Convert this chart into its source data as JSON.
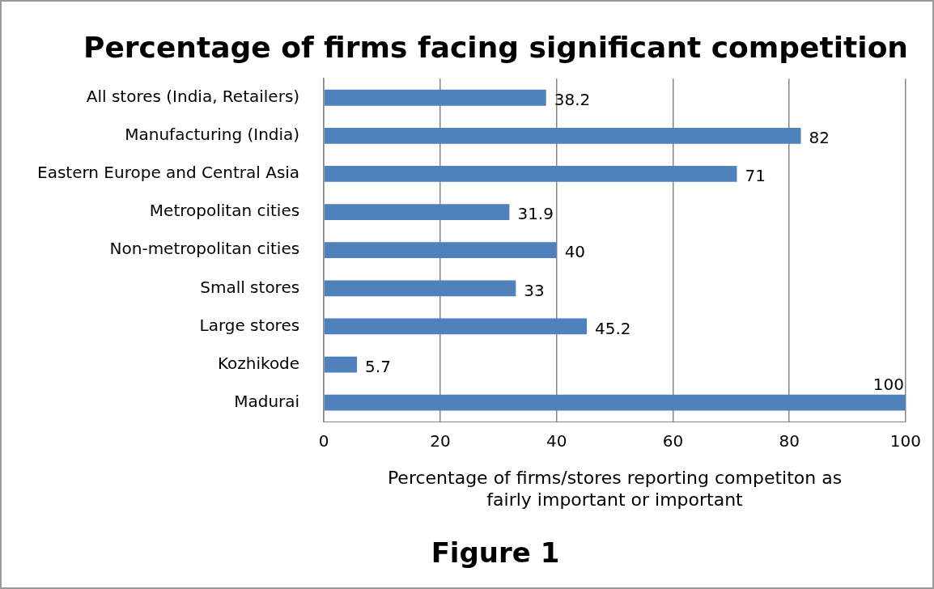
{
  "chart_data": {
    "type": "bar",
    "orientation": "horizontal",
    "title": "Percentage of firms facing significant competition",
    "categories": [
      "All stores (India, Retailers)",
      "Manufacturing (India)",
      "Eastern Europe and Central Asia",
      "Metropolitan cities",
      "Non-metropolitan cities",
      "Small stores",
      "Large stores",
      "Kozhikode",
      "Madurai"
    ],
    "values": [
      38.2,
      82,
      71,
      31.9,
      40,
      33,
      45.2,
      5.7,
      100
    ],
    "color": "#4f81bd",
    "xlim": [
      0,
      100
    ],
    "xticks": [
      0,
      20,
      40,
      60,
      80,
      100
    ],
    "xlabel": "Percentage of firms/stores reporting competiton as fairly important or important",
    "annotations": [
      "Figure 1"
    ],
    "grid": "x",
    "legend": false,
    "data_labels": true
  }
}
